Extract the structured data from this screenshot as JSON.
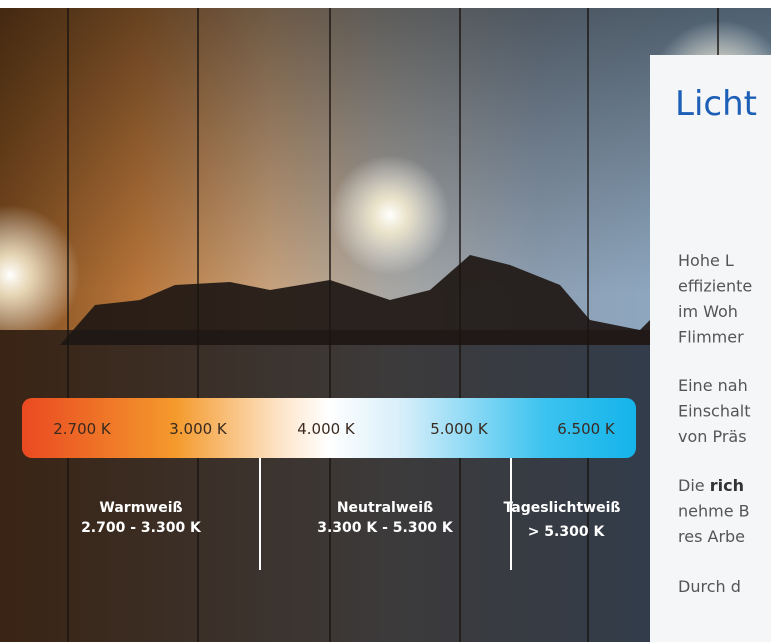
{
  "image": {
    "scale_labels": [
      "2.700 K",
      "3.000 K",
      "4.000 K",
      "5.000 K",
      "6.500 K"
    ],
    "ranges": [
      {
        "name": "Warmweiß",
        "range": "2.700 - 3.300 K"
      },
      {
        "name": "Neutralweiß",
        "range": "3.300 K - 5.300 K"
      },
      {
        "name": "Tageslichtweiß",
        "range": "> 5.300 K"
      }
    ]
  },
  "panel": {
    "title": "Licht",
    "paragraphs": [
      [
        [
          {
            "text": "Hohe L"
          }
        ],
        [
          {
            "text": "effiziente"
          }
        ],
        [
          {
            "text": "im Woh"
          }
        ],
        [
          {
            "text": "Flimmer"
          }
        ]
      ],
      [
        [
          {
            "text": "Eine nah"
          }
        ],
        [
          {
            "text": "Einschalt"
          }
        ],
        [
          {
            "text": "von Präs"
          }
        ]
      ],
      [
        [
          {
            "text": "Die "
          },
          {
            "text": "rich",
            "bold": true
          }
        ],
        [
          {
            "text": "nehme B"
          }
        ],
        [
          {
            "text": "res Arbe"
          }
        ]
      ],
      [
        [
          {
            "text": "Durch d"
          }
        ]
      ]
    ]
  }
}
